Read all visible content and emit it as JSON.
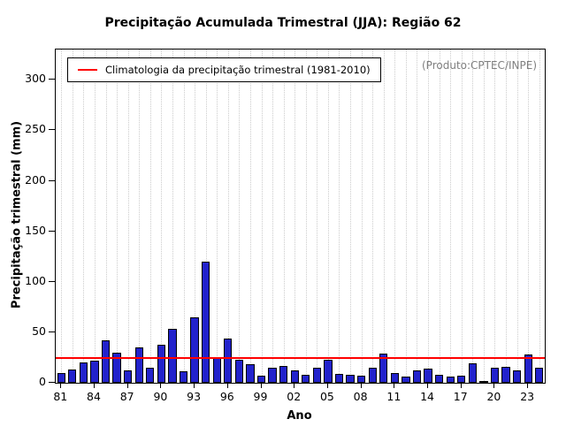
{
  "chart_data": {
    "type": "bar",
    "title": "Precipitação Acumulada Trimestral (JJA): Região 62",
    "xlabel": "Ano",
    "ylabel": "Precipitação trimestral (mm)",
    "annotation": "(Produto:CPTEC/INPE)",
    "legend_label": "Climatologia da precipitação trimestral (1981-2010)",
    "legend_position": "top-left",
    "grid": "dotted-vertical",
    "ylim": [
      0,
      330
    ],
    "yticks": [
      0,
      50,
      100,
      150,
      200,
      250,
      300
    ],
    "xtick_every": 3,
    "climatology_value": 25,
    "bar_color": "#2222cc",
    "bar_border_color": "#000000",
    "line_color": "#ff0000",
    "categories": [
      "81",
      "82",
      "83",
      "84",
      "85",
      "86",
      "87",
      "88",
      "89",
      "90",
      "91",
      "92",
      "93",
      "94",
      "95",
      "96",
      "97",
      "98",
      "99",
      "00",
      "01",
      "02",
      "03",
      "04",
      "05",
      "06",
      "07",
      "08",
      "09",
      "10",
      "11",
      "12",
      "13",
      "14",
      "15",
      "16",
      "17",
      "18",
      "19",
      "20",
      "21",
      "22",
      "23",
      "24"
    ],
    "values": [
      10,
      13,
      20,
      22,
      42,
      30,
      12,
      35,
      15,
      38,
      53,
      11,
      65,
      120,
      25,
      44,
      23,
      18,
      7,
      15,
      17,
      12,
      8,
      15,
      23,
      9,
      8,
      7,
      15,
      29,
      10,
      6,
      12,
      14,
      8,
      6,
      7,
      19,
      2,
      15,
      16,
      12,
      28,
      15
    ]
  }
}
